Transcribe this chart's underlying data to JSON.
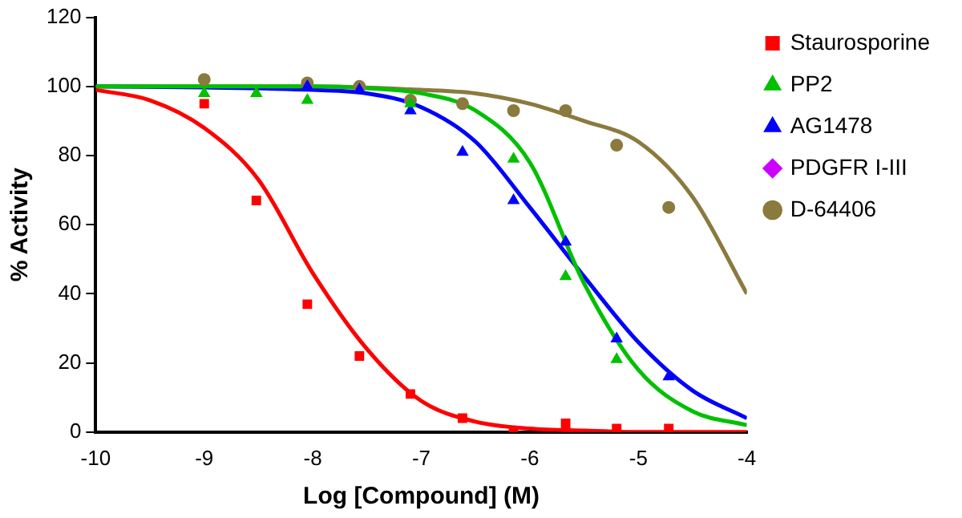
{
  "chart_data": {
    "type": "scatter",
    "xlabel": "Log [Compound] (M)",
    "ylabel": "% Activity",
    "x": [
      -9,
      -8.52,
      -8.05,
      -7.57,
      -7.1,
      -6.62,
      -6.15,
      -5.67,
      -5.2,
      -4.72
    ],
    "xlim": [
      -10,
      -4
    ],
    "xticks": [
      -10,
      -9,
      -8,
      -7,
      -6,
      -5,
      -4
    ],
    "ylim": [
      0,
      120
    ],
    "yticks": [
      0,
      20,
      40,
      60,
      80,
      100,
      120
    ],
    "grid": false,
    "legend": "right",
    "series": [
      {
        "name": "Staurosporine",
        "color": "#ff0000",
        "marker": "square",
        "values": [
          95,
          67,
          37,
          22,
          11,
          4,
          0,
          2.5,
          1,
          1
        ]
      },
      {
        "name": "PP2",
        "color": "#00c000",
        "marker": "triangle",
        "values": [
          98,
          98,
          96,
          null,
          95,
          null,
          79,
          45,
          21,
          null
        ]
      },
      {
        "name": "AG1478",
        "color": "#0000ff",
        "marker": "triangle",
        "values": [
          null,
          null,
          100,
          99,
          93,
          81,
          67,
          55,
          27,
          16
        ]
      },
      {
        "name": "PDGFR I-III",
        "color": "#cc00ff",
        "marker": "diamond",
        "values": [
          null,
          null,
          null,
          null,
          null,
          null,
          null,
          null,
          null,
          null
        ]
      },
      {
        "name": "D-64406",
        "color": "#8b7a3e",
        "marker": "circle",
        "values": [
          102,
          null,
          101,
          100,
          96,
          95,
          93,
          93,
          83,
          65
        ]
      },
      {
        "type": "line",
        "color": "#ff0000",
        "marker": "none",
        "x": [
          -10,
          -9.5,
          -9,
          -8.5,
          -8,
          -7.5,
          -7,
          -6.5,
          -6,
          -5.5,
          -5,
          -4.5,
          -4
        ],
        "values": [
          99,
          96,
          88,
          73,
          46,
          24,
          9,
          3,
          1,
          0.4,
          0,
          0,
          0
        ]
      },
      {
        "type": "line",
        "color": "#00c000",
        "marker": "none",
        "x": [
          -10,
          -9,
          -8,
          -7.5,
          -7,
          -6.5,
          -6,
          -5.5,
          -5,
          -4.5,
          -4
        ],
        "values": [
          100,
          100,
          100,
          99.5,
          98,
          93,
          78,
          43,
          18,
          6,
          2
        ]
      },
      {
        "type": "line",
        "color": "#0000ff",
        "marker": "none",
        "x": [
          -10,
          -9,
          -8,
          -7.5,
          -7,
          -6.5,
          -6,
          -5.5,
          -5,
          -4.5,
          -4
        ],
        "values": [
          100,
          99.7,
          99,
          98,
          94,
          84,
          65,
          45,
          26,
          12,
          4
        ]
      },
      {
        "type": "line",
        "color": "#8b7a3e",
        "marker": "none",
        "x": [
          -10,
          -8,
          -7,
          -6.5,
          -6,
          -5.5,
          -5,
          -4.5,
          -4
        ],
        "values": [
          100,
          100,
          99,
          98,
          95,
          90,
          84,
          68,
          40
        ]
      }
    ]
  }
}
